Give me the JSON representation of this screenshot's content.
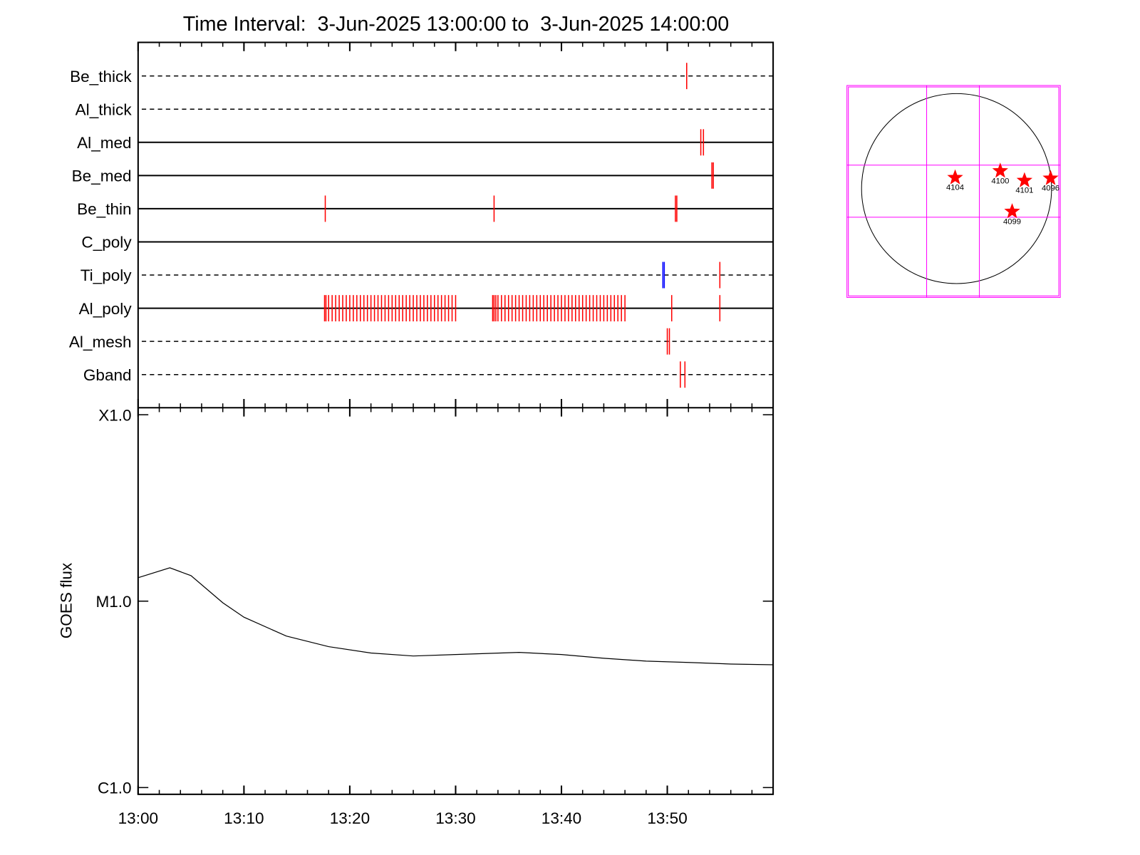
{
  "chart_data": [
    {
      "type": "timeline",
      "title": "Time Interval:  3-Jun-2025 13:00:00 to  3-Jun-2025 14:00:00",
      "xlim": [
        "13:00",
        "14:00"
      ],
      "color": "#ff0000",
      "series": [
        {
          "name": "Be_thick",
          "line": "dashed",
          "events": [
            "13:51:50"
          ]
        },
        {
          "name": "Al_thick",
          "line": "dashed",
          "events": []
        },
        {
          "name": "Al_med",
          "line": "solid",
          "events": [
            "13:53:10",
            "13:53:25"
          ]
        },
        {
          "name": "Be_med",
          "line": "solid",
          "events": [
            "13:54:13",
            "13:54:21"
          ]
        },
        {
          "name": "Be_thin",
          "line": "solid",
          "events": [
            "13:17:41",
            "13:33:38",
            "13:50:46",
            "13:50:54"
          ]
        },
        {
          "name": "C_poly",
          "line": "solid",
          "events": []
        },
        {
          "name": "Ti_poly",
          "line": "dashed",
          "events": [
            "13:49:35",
            "13:49:43",
            "13:54:58"
          ],
          "colors": [
            "#0000ff",
            "#0000ff",
            "#ff0000"
          ]
        },
        {
          "name": "Al_poly",
          "line": "solid",
          "events": [
            "13:17:37",
            "13:17:45",
            "13:18:00",
            "13:18:20",
            "13:18:40",
            "13:19:00",
            "13:19:20",
            "13:19:40",
            "13:20:00",
            "13:20:20",
            "13:20:40",
            "13:21:00",
            "13:21:20",
            "13:21:40",
            "13:22:00",
            "13:22:20",
            "13:22:40",
            "13:23:00",
            "13:23:20",
            "13:23:40",
            "13:24:00",
            "13:24:20",
            "13:24:40",
            "13:25:00",
            "13:25:20",
            "13:25:40",
            "13:26:00",
            "13:26:20",
            "13:26:40",
            "13:27:00",
            "13:27:20",
            "13:27:40",
            "13:28:00",
            "13:28:20",
            "13:28:40",
            "13:29:00",
            "13:29:20",
            "13:29:40",
            "13:30:00",
            "13:33:30",
            "13:33:38",
            "13:33:48",
            "13:34:00",
            "13:34:20",
            "13:34:40",
            "13:35:00",
            "13:35:20",
            "13:35:40",
            "13:36:00",
            "13:36:20",
            "13:36:40",
            "13:37:00",
            "13:37:20",
            "13:37:40",
            "13:38:00",
            "13:38:20",
            "13:38:40",
            "13:39:00",
            "13:39:20",
            "13:39:40",
            "13:40:00",
            "13:40:20",
            "13:40:40",
            "13:41:00",
            "13:41:20",
            "13:41:40",
            "13:42:00",
            "13:42:20",
            "13:42:40",
            "13:43:00",
            "13:43:20",
            "13:43:40",
            "13:44:00",
            "13:44:20",
            "13:44:40",
            "13:45:00",
            "13:45:20",
            "13:45:40",
            "13:46:00",
            "13:50:25",
            "13:54:58"
          ]
        },
        {
          "name": "Al_mesh",
          "line": "dashed",
          "events": [
            "13:50:00",
            "13:50:12"
          ]
        },
        {
          "name": "Gband",
          "line": "dashed",
          "events": [
            "13:51:14",
            "13:51:40"
          ]
        }
      ]
    },
    {
      "type": "line",
      "y_label": "GOES flux",
      "log_y": true,
      "color": "#000000",
      "xlim": [
        "13:00",
        "14:00"
      ],
      "xticks": [
        "13:00",
        "13:10",
        "13:20",
        "13:30",
        "13:40",
        "13:50"
      ],
      "x_minor_per_major": 5,
      "ylim": [
        9.2e-07,
        0.000109
      ],
      "yticks": [
        {
          "value": 1e-06,
          "label": "C1.0"
        },
        {
          "value": 1e-05,
          "label": "M1.0"
        },
        {
          "value": 0.0001,
          "label": "X1.0"
        }
      ],
      "x": [
        "13:00",
        "13:03",
        "13:05",
        "13:08",
        "13:10",
        "13:14",
        "13:18",
        "13:22",
        "13:26",
        "13:30",
        "13:36",
        "13:40",
        "13:44",
        "13:48",
        "13:52",
        "13:56",
        "14:00"
      ],
      "values": [
        1.335e-05,
        1.51e-05,
        1.37e-05,
        9.8e-06,
        8.2e-06,
        6.5e-06,
        5.7e-06,
        5.27e-06,
        5.08e-06,
        5.17e-06,
        5.31e-06,
        5.17e-06,
        4.94e-06,
        4.77e-06,
        4.69e-06,
        4.6e-06,
        4.56e-06
      ]
    },
    {
      "type": "map",
      "xlim": [
        -1.154,
        1.092
      ],
      "ylim": [
        -1.14,
        1.08
      ],
      "grid_x": [
        -0.315,
        0.24
      ],
      "grid_y": [
        0.246,
        -0.3
      ],
      "grid_color": "#ff00ff",
      "color": "#ff0000",
      "points": [
        {
          "name": "4104",
          "x": -0.015,
          "y": 0.115
        },
        {
          "name": "4100",
          "x": 0.46,
          "y": 0.185
        },
        {
          "name": "4101",
          "x": 0.715,
          "y": 0.085
        },
        {
          "name": "4096",
          "x": 0.99,
          "y": 0.108
        },
        {
          "name": "4099",
          "x": 0.585,
          "y": -0.24
        }
      ]
    }
  ]
}
